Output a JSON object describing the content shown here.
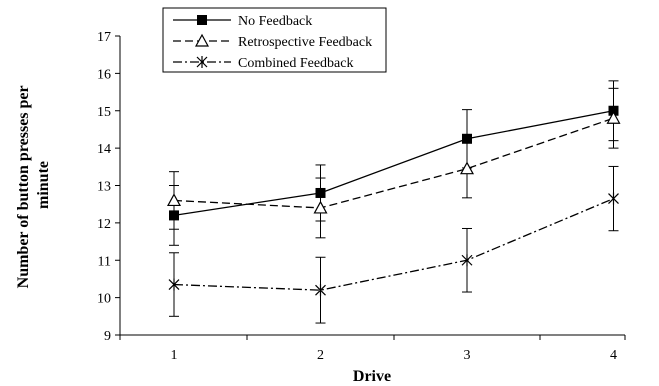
{
  "chart_data": {
    "type": "line",
    "x": [
      1,
      2,
      3,
      4
    ],
    "xlabel": "Drive",
    "ylabel": [
      "Number of button presses per",
      "minute"
    ],
    "ylim": [
      9,
      17
    ],
    "yticks": [
      9,
      10,
      11,
      12,
      13,
      14,
      15,
      16,
      17
    ],
    "xticks": [
      1,
      2,
      3,
      4
    ],
    "grid": false,
    "legend_position": "top-left",
    "series": [
      {
        "name": "No Feedback",
        "values": [
          12.2,
          12.8,
          14.25,
          15.0
        ],
        "error": [
          0.8,
          0.75,
          0.78,
          0.8
        ],
        "marker": "filled-square",
        "line": "solid"
      },
      {
        "name": "Retrospective Feedback",
        "values": [
          12.6,
          12.4,
          13.45,
          14.8
        ],
        "error": [
          0.77,
          0.8,
          0.78,
          0.8
        ],
        "marker": "open-triangle",
        "line": "dashed"
      },
      {
        "name": "Combined Feedback",
        "values": [
          10.35,
          10.2,
          11.0,
          12.65
        ],
        "error": [
          0.85,
          0.88,
          0.85,
          0.86
        ],
        "marker": "asterisk",
        "line": "dash-dot"
      }
    ]
  }
}
